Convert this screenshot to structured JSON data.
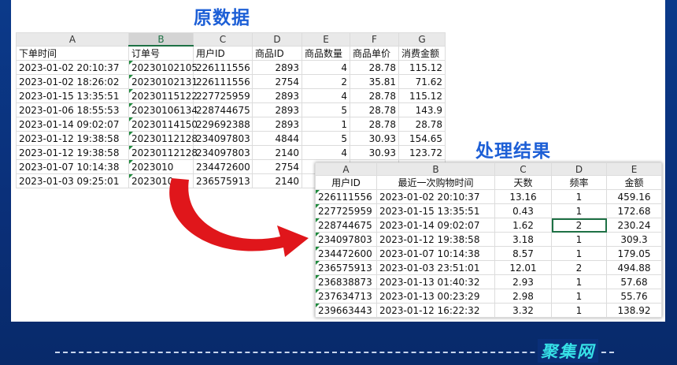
{
  "original": {
    "title": "原数据",
    "columns": [
      "A",
      "B",
      "C",
      "D",
      "E",
      "F",
      "G"
    ],
    "headers": [
      "下单时间",
      "订单号",
      "用户ID",
      "商品ID",
      "商品数量",
      "商品单价",
      "消费金额"
    ],
    "rows": [
      [
        "2023-01-02 20:10:37",
        "20230102105",
        "226111556",
        "2893",
        "4",
        "28.78",
        "115.12"
      ],
      [
        "2023-01-02 18:26:02",
        "20230102131",
        "226111556",
        "2754",
        "2",
        "35.81",
        "71.62"
      ],
      [
        "2023-01-15 13:35:51",
        "20230115122",
        "227725959",
        "2893",
        "4",
        "28.78",
        "115.12"
      ],
      [
        "2023-01-06 18:55:53",
        "20230106134",
        "228744675",
        "2893",
        "5",
        "28.78",
        "143.9"
      ],
      [
        "2023-01-14 09:02:07",
        "20230114150",
        "229692388",
        "2893",
        "1",
        "28.78",
        "28.78"
      ],
      [
        "2023-01-12 19:38:58",
        "20230112128",
        "234097803",
        "4844",
        "5",
        "30.93",
        "154.65"
      ],
      [
        "2023-01-12 19:38:58",
        "20230112128",
        "234097803",
        "2140",
        "4",
        "30.93",
        "123.72"
      ],
      [
        "2023-01-07 10:14:38",
        "2023010",
        "234472600",
        "2754",
        "",
        "",
        ""
      ],
      [
        "2023-01-03 09:25:01",
        "2023010",
        "236575913",
        "2140",
        "",
        "",
        ""
      ]
    ]
  },
  "result": {
    "title": "处理结果",
    "columns": [
      "A",
      "B",
      "C",
      "D",
      "E"
    ],
    "headers": [
      "用户ID",
      "最近一次购物时间",
      "天数",
      "频率",
      "金额"
    ],
    "rows": [
      [
        "226111556",
        "2023-01-02 20:10:37",
        "13.16",
        "1",
        "459.16"
      ],
      [
        "227725959",
        "2023-01-15 13:35:51",
        "0.43",
        "1",
        "172.68"
      ],
      [
        "228744675",
        "2023-01-14 09:02:07",
        "1.62",
        "2",
        "230.24"
      ],
      [
        "234097803",
        "2023-01-12 19:38:58",
        "3.18",
        "1",
        "309.3"
      ],
      [
        "234472600",
        "2023-01-07 10:14:38",
        "8.57",
        "1",
        "179.05"
      ],
      [
        "236575913",
        "2023-01-03 23:51:01",
        "12.01",
        "2",
        "494.88"
      ],
      [
        "236838873",
        "2023-01-13 01:40:32",
        "2.93",
        "1",
        "57.68"
      ],
      [
        "237634713",
        "2023-01-13 00:23:29",
        "2.98",
        "1",
        "55.76"
      ],
      [
        "239663443",
        "2023-01-12 16:22:32",
        "3.32",
        "1",
        "138.92"
      ]
    ]
  },
  "logo": "聚集网",
  "colors": {
    "accent": "#1d5fd6",
    "arrow": "#e0161b",
    "selection": "#1e7145"
  }
}
